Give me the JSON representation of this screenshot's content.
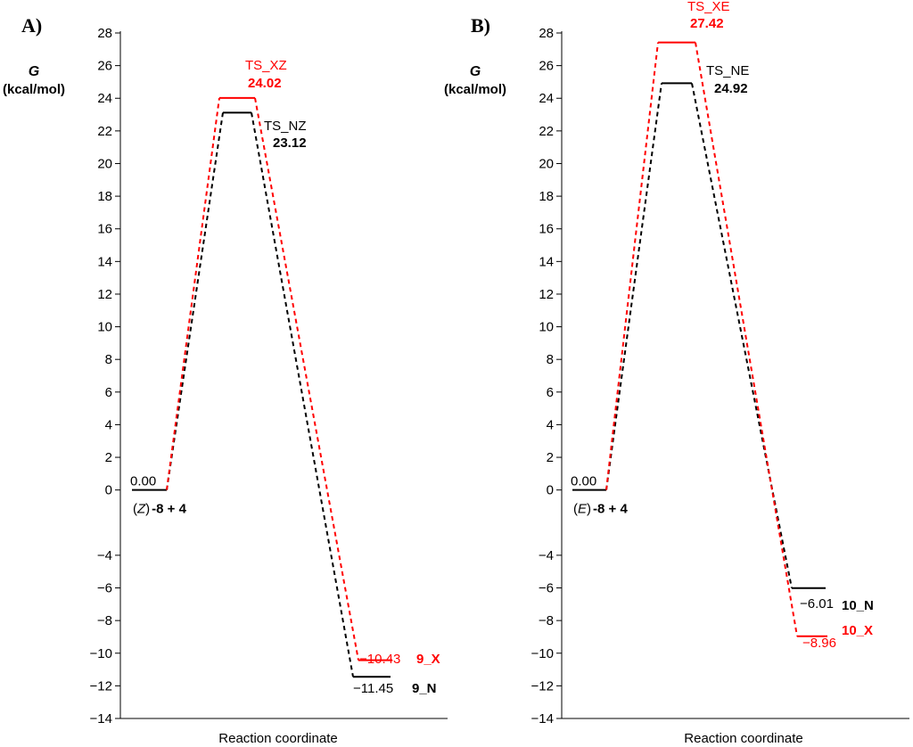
{
  "chart_data": [
    {
      "panel": "A)",
      "type": "energy_profile",
      "ylabel_symbol": "G",
      "ylabel_unit": "(kcal/mol)",
      "xlabel": "Reaction coordinate",
      "ylim": [
        -14,
        28
      ],
      "ytick_labels": [
        "28",
        "26",
        "24",
        "22",
        "20",
        "18",
        "16",
        "14",
        "12",
        "10",
        "8",
        "6",
        "4",
        "2",
        "0",
        "−4",
        "−6",
        "−8",
        "−10",
        "−12",
        "−14"
      ],
      "yticks": [
        28,
        26,
        24,
        22,
        20,
        18,
        16,
        14,
        12,
        10,
        8,
        6,
        4,
        2,
        0,
        -4,
        -6,
        -8,
        -10,
        -12,
        -14
      ],
      "colors": {
        "N": "#000000",
        "X": "#ff0000"
      },
      "reactant": {
        "value": 0.0,
        "value_label": "0.00",
        "name_prefix": "(",
        "name_italic": "Z",
        "name_suffix": ")",
        "name_rest": "-8 + 4"
      },
      "series": [
        {
          "name": "N",
          "ts_label": "TS_NZ",
          "ts_value": 23.12,
          "ts_value_label": "23.12",
          "product_label": "9_N",
          "product_value": -11.45,
          "product_value_label": "−11.45"
        },
        {
          "name": "X",
          "ts_label": "TS_XZ",
          "ts_value": 24.02,
          "ts_value_label": "24.02",
          "product_label": "9_X",
          "product_value": -10.43,
          "product_value_label": "−10.43"
        }
      ]
    },
    {
      "panel": "B)",
      "type": "energy_profile",
      "ylabel_symbol": "G",
      "ylabel_unit": "(kcal/mol)",
      "xlabel": "Reaction coordinate",
      "ylim": [
        -14,
        28
      ],
      "ytick_labels": [
        "28",
        "26",
        "24",
        "22",
        "20",
        "18",
        "16",
        "14",
        "12",
        "10",
        "8",
        "6",
        "4",
        "2",
        "0",
        "−4",
        "−6",
        "−8",
        "−10",
        "−12",
        "−14"
      ],
      "yticks": [
        28,
        26,
        24,
        22,
        20,
        18,
        16,
        14,
        12,
        10,
        8,
        6,
        4,
        2,
        0,
        -4,
        -6,
        -8,
        -10,
        -12,
        -14
      ],
      "colors": {
        "N": "#000000",
        "X": "#ff0000"
      },
      "reactant": {
        "value": 0.0,
        "value_label": "0.00",
        "name_prefix": "(",
        "name_italic": "E",
        "name_suffix": ")",
        "name_rest": "-8 + 4"
      },
      "series": [
        {
          "name": "N",
          "ts_label": "TS_NE",
          "ts_value": 24.92,
          "ts_value_label": "24.92",
          "product_label": "10_N",
          "product_value": -6.01,
          "product_value_label": "−6.01"
        },
        {
          "name": "X",
          "ts_label": "TS_XE",
          "ts_value": 27.42,
          "ts_value_label": "27.42",
          "product_label": "10_X",
          "product_value": -8.96,
          "product_value_label": "−8.96"
        }
      ]
    }
  ]
}
